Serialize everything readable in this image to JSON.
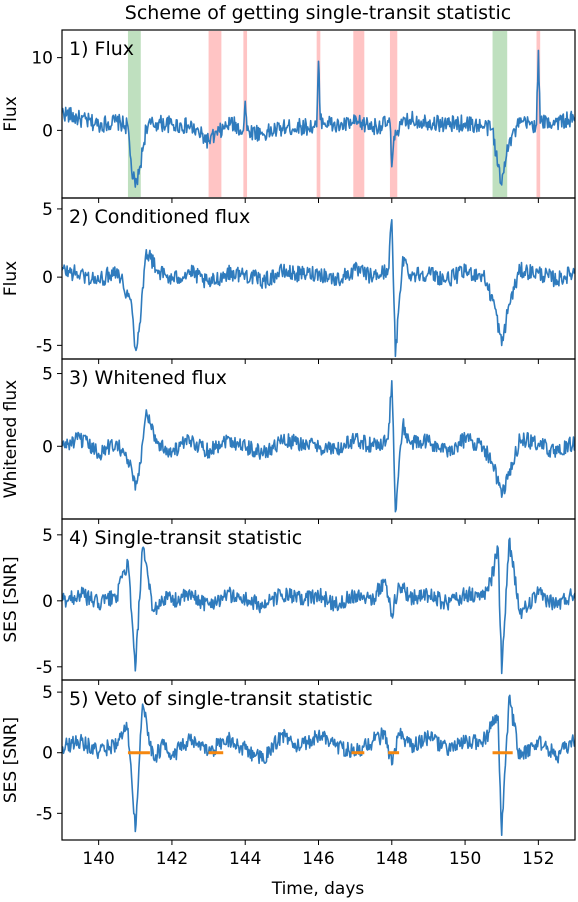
{
  "title": "Scheme of getting single-transit statistic",
  "xlabel": "Time, days",
  "colors": {
    "line": "#2f7bbd",
    "veto_segment": "#f5870f",
    "transit_band": "#bfe0bf",
    "artifact_band": "#ffc4c4"
  },
  "chart_data": [
    {
      "type": "line",
      "title": "1) Flux",
      "ylabel": "Flux",
      "xlim": [
        139,
        153
      ],
      "ylim": [
        -9.3,
        13.8
      ],
      "yticks": [
        0,
        10
      ],
      "xticks": [
        140,
        142,
        144,
        146,
        148,
        150,
        152
      ],
      "highlight_bands": [
        {
          "kind": "transit",
          "x0": 140.8,
          "x1": 141.15
        },
        {
          "kind": "artifact",
          "x0": 143.0,
          "x1": 143.35
        },
        {
          "kind": "artifact",
          "x0": 143.95,
          "x1": 144.05
        },
        {
          "kind": "artifact",
          "x0": 145.95,
          "x1": 146.05
        },
        {
          "kind": "artifact",
          "x0": 146.95,
          "x1": 147.25
        },
        {
          "kind": "artifact",
          "x0": 147.95,
          "x1": 148.15
        },
        {
          "kind": "transit",
          "x0": 150.75,
          "x1": 151.15
        },
        {
          "kind": "artifact",
          "x0": 151.95,
          "x1": 152.05
        }
      ],
      "series": [
        {
          "x": [
            139,
            139.5,
            140,
            140.5,
            140.8,
            140.9,
            141.0,
            141.1,
            141.3,
            141.6,
            142,
            142.5,
            143.0,
            143.4,
            143.6,
            143.95,
            144.0,
            144.05,
            144.5,
            145,
            145.5,
            145.95,
            146.0,
            146.05,
            146.5,
            146.95,
            147.3,
            147.5,
            147.95,
            148.0,
            148.1,
            148.5,
            149,
            149.5,
            150,
            150.5,
            150.75,
            150.9,
            151.0,
            151.15,
            151.5,
            151.95,
            152.0,
            152.05,
            152.5,
            153
          ],
          "y": [
            2.5,
            1.5,
            0.8,
            1.2,
            0.5,
            -5.5,
            -7.8,
            -6.0,
            0.5,
            1.0,
            0.8,
            0.5,
            -1.5,
            0.2,
            1.0,
            0.0,
            4.0,
            0.0,
            -0.5,
            0.3,
            0.5,
            0.5,
            9.5,
            1.5,
            0.5,
            1.0,
            0.8,
            0.5,
            1.0,
            -5.0,
            0.0,
            1.5,
            1.2,
            0.8,
            1.0,
            0.5,
            0.2,
            -5.0,
            -7.5,
            -2.0,
            1.0,
            0.8,
            11.0,
            1.0,
            1.2,
            1.5
          ]
        }
      ]
    },
    {
      "type": "line",
      "title": "2) Conditioned flux",
      "ylabel": "Flux",
      "xlim": [
        139,
        153
      ],
      "ylim": [
        -6.0,
        5.8
      ],
      "yticks": [
        -5,
        0,
        5
      ],
      "xticks": [
        140,
        142,
        144,
        146,
        148,
        150,
        152
      ],
      "series": [
        {
          "x": [
            139,
            139.5,
            140,
            140.5,
            140.9,
            141.0,
            141.1,
            141.3,
            141.6,
            142,
            142.5,
            143,
            143.5,
            144,
            144.5,
            145,
            145.5,
            146,
            146.5,
            147,
            147.5,
            147.9,
            148.0,
            148.1,
            148.3,
            148.5,
            149,
            149.5,
            150,
            150.5,
            150.8,
            151.0,
            151.2,
            151.5,
            152,
            152.5,
            153
          ],
          "y": [
            0.5,
            0.2,
            -0.3,
            0.6,
            -2.0,
            -5.2,
            -4.0,
            2.0,
            0.5,
            -0.2,
            0.4,
            -0.5,
            0.3,
            0.2,
            -0.3,
            0.4,
            0.2,
            0.3,
            -0.2,
            0.5,
            0.0,
            0.5,
            4.2,
            -5.8,
            1.5,
            0.2,
            0.3,
            -0.2,
            0.4,
            0.1,
            -2.0,
            -5.0,
            -2.0,
            0.5,
            0.3,
            -0.2,
            0.4
          ]
        }
      ]
    },
    {
      "type": "line",
      "title": "3) Whitened flux",
      "ylabel": "Whitened flux",
      "xlim": [
        139,
        153
      ],
      "ylim": [
        -5.0,
        6.0
      ],
      "yticks": [
        0,
        5
      ],
      "xticks": [
        140,
        142,
        144,
        146,
        148,
        150,
        152
      ],
      "series": [
        {
          "x": [
            139,
            139.5,
            140,
            140.5,
            140.9,
            141.0,
            141.1,
            141.3,
            141.6,
            142,
            142.5,
            143,
            143.5,
            144,
            144.5,
            145,
            145.5,
            146,
            146.5,
            147,
            147.5,
            147.9,
            148.0,
            148.1,
            148.3,
            148.5,
            149,
            149.5,
            150,
            150.5,
            150.8,
            151.0,
            151.2,
            151.5,
            152,
            152.5,
            153
          ],
          "y": [
            0.0,
            0.5,
            -0.5,
            0.3,
            -1.5,
            -3.0,
            -2.0,
            2.5,
            0.2,
            -0.4,
            0.4,
            -0.3,
            0.5,
            0.0,
            -0.5,
            0.4,
            0.2,
            0.0,
            -0.3,
            0.5,
            0.0,
            0.5,
            4.5,
            -4.5,
            1.5,
            0.2,
            0.3,
            -0.4,
            0.5,
            0.0,
            -1.5,
            -3.5,
            -2.0,
            0.5,
            0.2,
            -0.5,
            0.3
          ]
        }
      ]
    },
    {
      "type": "line",
      "title": "4) Single-transit statistic",
      "ylabel": "SES [SNR]",
      "xlim": [
        139,
        153
      ],
      "ylim": [
        -6.0,
        6.2
      ],
      "yticks": [
        -5,
        0,
        5
      ],
      "xticks": [
        140,
        142,
        144,
        146,
        148,
        150,
        152
      ],
      "series": [
        {
          "x": [
            139,
            139.5,
            140,
            140.5,
            140.8,
            141.0,
            141.2,
            141.5,
            141.8,
            142,
            142.5,
            143,
            143.5,
            144,
            144.5,
            145,
            145.5,
            146,
            146.5,
            147,
            147.5,
            147.8,
            148.0,
            148.2,
            148.5,
            149,
            149.5,
            150,
            150.5,
            150.7,
            150.9,
            151.0,
            151.2,
            151.5,
            152,
            152.5,
            153
          ],
          "y": [
            0.0,
            0.5,
            -0.2,
            0.4,
            3.0,
            -5.3,
            4.0,
            -0.8,
            0.3,
            0.0,
            0.4,
            -0.3,
            0.5,
            0.1,
            -0.4,
            0.5,
            0.1,
            0.4,
            -0.3,
            0.5,
            0.2,
            1.5,
            -1.0,
            1.2,
            0.3,
            0.4,
            -0.2,
            0.5,
            0.3,
            1.5,
            4.0,
            -5.5,
            4.6,
            -1.0,
            0.5,
            -0.3,
            0.6
          ]
        }
      ]
    },
    {
      "type": "line",
      "title": "5) Veto of single-transit statistic",
      "ylabel": "SES [SNR]",
      "xlim": [
        139,
        153
      ],
      "ylim": [
        -7.2,
        6.0
      ],
      "yticks": [
        -5,
        0,
        5
      ],
      "xticks": [
        140,
        142,
        144,
        146,
        148,
        150,
        152
      ],
      "veto_segments": [
        {
          "x0": 140.8,
          "x1": 141.4
        },
        {
          "x0": 143.0,
          "x1": 143.4
        },
        {
          "x0": 146.9,
          "x1": 147.25
        },
        {
          "x0": 147.9,
          "x1": 148.2
        },
        {
          "x0": 150.75,
          "x1": 151.3
        }
      ],
      "series": [
        {
          "x": [
            139,
            139.5,
            140,
            140.5,
            140.8,
            141.0,
            141.2,
            141.5,
            141.8,
            142,
            142.5,
            143,
            143.5,
            144,
            144.5,
            145,
            145.5,
            146,
            146.5,
            147,
            147.5,
            147.8,
            148.0,
            148.2,
            148.5,
            149,
            149.5,
            150,
            150.5,
            150.7,
            150.9,
            151.0,
            151.2,
            151.5,
            152,
            152.5,
            153
          ],
          "y": [
            0.5,
            1.0,
            0.0,
            0.8,
            2.0,
            -6.5,
            4.0,
            -0.5,
            0.8,
            -0.2,
            1.0,
            0.0,
            1.2,
            0.3,
            -0.6,
            1.5,
            0.4,
            1.5,
            0.6,
            0.0,
            1.0,
            1.5,
            -1.0,
            1.5,
            0.5,
            1.3,
            0.3,
            0.8,
            1.0,
            2.0,
            3.0,
            -6.8,
            4.6,
            -0.5,
            1.0,
            -0.3,
            1.0
          ]
        }
      ]
    }
  ]
}
